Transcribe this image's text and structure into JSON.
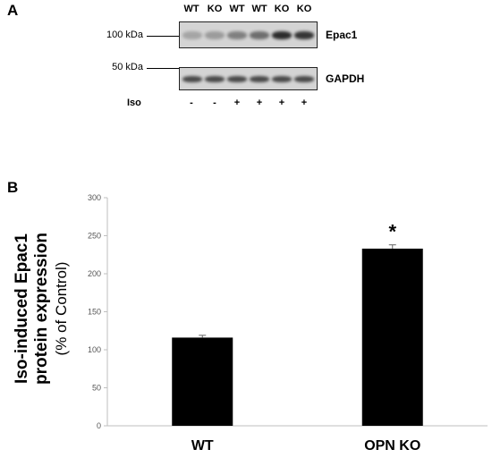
{
  "panel_a": {
    "letter": "A",
    "lanes": [
      "WT",
      "KO",
      "WT",
      "WT",
      "KO",
      "KO"
    ],
    "markers": [
      {
        "label": "100 kDa",
        "blot": "epac1"
      },
      {
        "label": "50 kDa",
        "blot": "gapdh"
      }
    ],
    "proteins": {
      "epac1": "Epac1",
      "gapdh": "GAPDH"
    },
    "iso_label": "Iso",
    "iso_treatment": [
      "-",
      "-",
      "+",
      "+",
      "+",
      "+"
    ],
    "band_intensity": {
      "epac1": [
        0.25,
        0.3,
        0.45,
        0.55,
        0.9,
        0.85
      ],
      "gapdh": [
        0.75,
        0.75,
        0.75,
        0.75,
        0.75,
        0.75
      ]
    },
    "colors": {
      "blot_bg": "#d4d4d4",
      "band": "#1a1a1a"
    }
  },
  "chart_data": {
    "letter": "B",
    "type": "bar",
    "categories": [
      "WT",
      "OPN KO"
    ],
    "values": [
      116,
      233
    ],
    "errors": [
      3,
      5
    ],
    "significance": [
      "",
      "*"
    ],
    "title": "",
    "xlabel": "",
    "ylabel_line1": "Iso-induced Epac1",
    "ylabel_line2": "protein expression",
    "ylabel_line3": "(% of Control)",
    "ylim": [
      0,
      300
    ],
    "yticks": [
      0,
      50,
      100,
      150,
      200,
      250,
      300
    ],
    "grid": false,
    "legend": "none",
    "colors": {
      "bar": "#000000",
      "axis": "#bfbfbf"
    }
  }
}
